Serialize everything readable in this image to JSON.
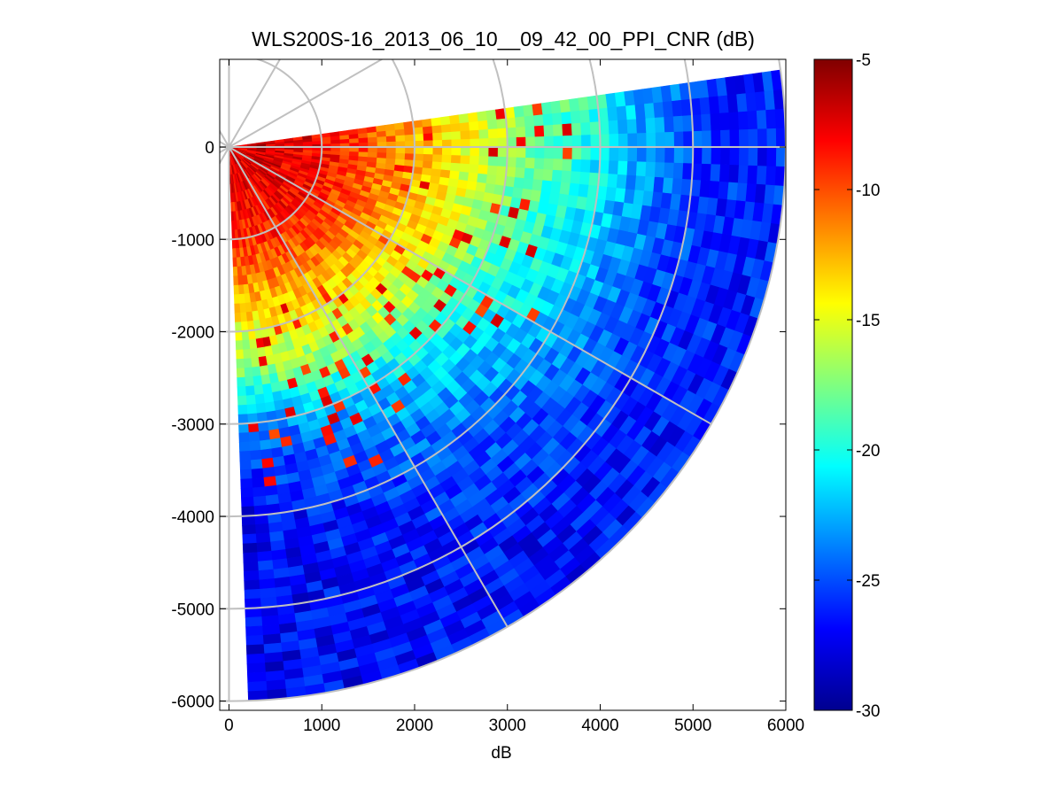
{
  "chart_data": {
    "type": "heatmap",
    "subtype": "polar-ppi-sector",
    "title": "WLS200S-16_2013_06_10__09_42_00_PPI_CNR (dB)",
    "xlabel": "dB",
    "ylabel": "",
    "xlim": [
      -100,
      6000
    ],
    "ylim": [
      -6100,
      950
    ],
    "xticks": [
      0,
      1000,
      2000,
      3000,
      4000,
      5000,
      6000
    ],
    "xtick_labels": [
      "0",
      "1000",
      "2000",
      "3000",
      "4000",
      "5000",
      "6000"
    ],
    "yticks": [
      0,
      -1000,
      -2000,
      -3000,
      -4000,
      -5000,
      -6000
    ],
    "ytick_labels": [
      "0",
      "-1000",
      "-2000",
      "-3000",
      "-4000",
      "-5000",
      "-6000"
    ],
    "grid": true,
    "polar_grid": {
      "range_rings_m": [
        1000,
        2000,
        3000,
        4000,
        5000,
        6000
      ],
      "spoke_angles_deg": [
        0,
        30,
        60,
        90,
        120,
        150,
        180,
        210,
        240,
        270,
        300,
        330
      ]
    },
    "scan": {
      "azimuth_start_deg": 8,
      "azimuth_end_deg": -88,
      "max_range_m": 6000,
      "range_gate_m": 100,
      "azimuth_step_deg": 2
    },
    "colormap": "jet",
    "colorbar": {
      "clim": [
        -30,
        -5
      ],
      "ticks": [
        -5,
        -10,
        -15,
        -20,
        -25,
        -30
      ],
      "tick_labels": [
        "-5",
        "-10",
        "-15",
        "-20",
        "-25",
        "-30"
      ],
      "position": "right"
    },
    "cnr_range_profile": {
      "range_m": [
        0,
        500,
        1000,
        1500,
        2000,
        2500,
        3000,
        3500,
        4000,
        4500,
        5000,
        5500,
        6000
      ],
      "cnr_db_near_north": [
        -7,
        -7,
        -8,
        -10,
        -12,
        -14,
        -16,
        -18,
        -20,
        -23,
        -25,
        -26,
        -26
      ],
      "cnr_db_near_south": [
        -7,
        -8,
        -9,
        -12,
        -15,
        -18,
        -24,
        -26,
        -27,
        -27,
        -27,
        -27,
        -27
      ]
    }
  }
}
